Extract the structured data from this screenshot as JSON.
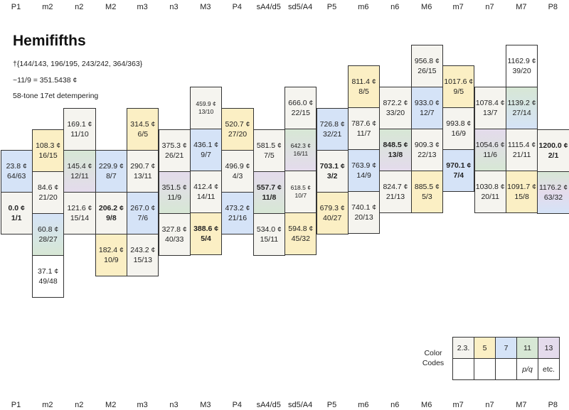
{
  "headers": [
    "P1",
    "m2",
    "n2",
    "M2",
    "m3",
    "n3",
    "M3",
    "P4",
    "sA4/d5",
    "sd5/A4",
    "P5",
    "m6",
    "n6",
    "M6",
    "m7",
    "n7",
    "M7",
    "P8"
  ],
  "title": "Hemififths",
  "info": [
    "†{144/143, 196/195, 243/242, 364/363}",
    "~11/9 = 351.5438 ¢",
    "58-tone 17et detempering"
  ],
  "colors": {
    "gray": "#f5f4ef",
    "yellow": "#fbefc4",
    "blue": "#d5e3f7",
    "green": "#d7e7d5",
    "purple": "#e4dbec",
    "white": "#ffffff"
  },
  "columns": [
    [
      {
        "cents": "23.8 ¢",
        "ratio": "64/63",
        "color": "blue"
      },
      {
        "cents": "0.0 ¢",
        "ratio": "1/1",
        "color": "gray",
        "bold": true
      }
    ],
    [
      {
        "cents": "108.3 ¢",
        "ratio": "16/15",
        "color": "yellow"
      },
      {
        "cents": "84.6 ¢",
        "ratio": "21/20",
        "color": "gray"
      },
      {
        "cents": "60.8 ¢",
        "ratio": "28/27",
        "color": "blue-green"
      },
      {
        "cents": "37.1 ¢",
        "ratio": "49/48",
        "color": "white"
      }
    ],
    [
      {
        "cents": "169.1 ¢",
        "ratio": "11/10",
        "color": "gray"
      },
      {
        "cents": "145.4 ¢",
        "ratio": "12/11",
        "color": "green-purple"
      },
      {
        "cents": "121.6 ¢",
        "ratio": "15/14",
        "color": "gray"
      }
    ],
    [
      {
        "cents": "229.9 ¢",
        "ratio": "8/7",
        "color": "blue"
      },
      {
        "cents": "206.2 ¢",
        "ratio": "9/8",
        "color": "gray",
        "bold": true
      },
      {
        "cents": "182.4 ¢",
        "ratio": "10/9",
        "color": "yellow"
      }
    ],
    [
      {
        "cents": "314.5 ¢",
        "ratio": "6/5",
        "color": "yellow"
      },
      {
        "cents": "290.7 ¢",
        "ratio": "13/11",
        "color": "gray"
      },
      {
        "cents": "267.0 ¢",
        "ratio": "7/6",
        "color": "blue"
      },
      {
        "cents": "243.2 ¢",
        "ratio": "15/13",
        "color": "gray"
      }
    ],
    [
      {
        "cents": "375.3 ¢",
        "ratio": "26/21",
        "color": "gray"
      },
      {
        "cents": "351.5 ¢",
        "ratio": "11/9",
        "color": "purple-green"
      },
      {
        "cents": "327.8 ¢",
        "ratio": "40/33",
        "color": "gray"
      }
    ],
    [
      {
        "cents": "459.9 ¢",
        "ratio": "13/10",
        "color": "gray",
        "small": true
      },
      {
        "cents": "436.1 ¢",
        "ratio": "9/7",
        "color": "blue"
      },
      {
        "cents": "412.4 ¢",
        "ratio": "14/11",
        "color": "gray"
      },
      {
        "cents": "388.6 ¢",
        "ratio": "5/4",
        "color": "yellow",
        "bold": true
      }
    ],
    [
      {
        "cents": "520.7 ¢",
        "ratio": "27/20",
        "color": "yellow"
      },
      {
        "cents": "496.9 ¢",
        "ratio": "4/3",
        "color": "gray"
      },
      {
        "cents": "473.2 ¢",
        "ratio": "21/16",
        "color": "blue"
      }
    ],
    [
      {
        "cents": "581.5 ¢",
        "ratio": "7/5",
        "color": "gray"
      },
      {
        "cents": "557.7 ¢",
        "ratio": "11/8",
        "color": "purple-green",
        "bold": true
      },
      {
        "cents": "534.0 ¢",
        "ratio": "15/11",
        "color": "gray"
      }
    ],
    [
      {
        "cents": "666.0 ¢",
        "ratio": "22/15",
        "color": "gray"
      },
      {
        "cents": "642.3 ¢",
        "ratio": "16/11",
        "color": "green-purple",
        "small": true
      },
      {
        "cents": "618.5 ¢",
        "ratio": "10/7",
        "color": "gray",
        "small": true
      },
      {
        "cents": "594.8 ¢",
        "ratio": "45/32",
        "color": "yellow"
      }
    ],
    [
      {
        "cents": "726.8 ¢",
        "ratio": "32/21",
        "color": "blue"
      },
      {
        "cents": "703.1 ¢",
        "ratio": "3/2",
        "color": "gray",
        "bold": true
      },
      {
        "cents": "679.3 ¢",
        "ratio": "40/27",
        "color": "yellow"
      }
    ],
    [
      {
        "cents": "811.4 ¢",
        "ratio": "8/5",
        "color": "yellow"
      },
      {
        "cents": "787.6 ¢",
        "ratio": "11/7",
        "color": "gray"
      },
      {
        "cents": "763.9 ¢",
        "ratio": "14/9",
        "color": "blue"
      },
      {
        "cents": "740.1 ¢",
        "ratio": "20/13",
        "color": "gray"
      }
    ],
    [
      {
        "cents": "872.2 ¢",
        "ratio": "33/20",
        "color": "gray"
      },
      {
        "cents": "848.5 ¢",
        "ratio": "13/8",
        "color": "green-purple",
        "bold": true
      },
      {
        "cents": "824.7 ¢",
        "ratio": "21/13",
        "color": "gray"
      }
    ],
    [
      {
        "cents": "956.8 ¢",
        "ratio": "26/15",
        "color": "gray"
      },
      {
        "cents": "933.0 ¢",
        "ratio": "12/7",
        "color": "blue"
      },
      {
        "cents": "909.3 ¢",
        "ratio": "22/13",
        "color": "gray"
      },
      {
        "cents": "885.5 ¢",
        "ratio": "5/3",
        "color": "yellow"
      }
    ],
    [
      {
        "cents": "1017.6 ¢",
        "ratio": "9/5",
        "color": "yellow"
      },
      {
        "cents": "993.8 ¢",
        "ratio": "16/9",
        "color": "gray"
      },
      {
        "cents": "970.1 ¢",
        "ratio": "7/4",
        "color": "blue",
        "bold": true
      }
    ],
    [
      {
        "cents": "1078.4 ¢",
        "ratio": "13/7",
        "color": "gray"
      },
      {
        "cents": "1054.6 ¢",
        "ratio": "11/6",
        "color": "purple-green"
      },
      {
        "cents": "1030.8 ¢",
        "ratio": "20/11",
        "color": "gray"
      }
    ],
    [
      {
        "cents": "1162.9 ¢",
        "ratio": "39/20",
        "color": "white"
      },
      {
        "cents": "1139.2 ¢",
        "ratio": "27/14",
        "color": "green-blue"
      },
      {
        "cents": "1115.4 ¢",
        "ratio": "21/11",
        "color": "gray"
      },
      {
        "cents": "1091.7 ¢",
        "ratio": "15/8",
        "color": "yellow"
      }
    ],
    [
      {
        "cents": "1200.0 ¢",
        "ratio": "2/1",
        "color": "gray",
        "bold": true
      },
      {
        "cents": "1176.2 ¢",
        "ratio": "63/32",
        "color": "green-purple-blue"
      }
    ]
  ],
  "legend": {
    "label": [
      "Color",
      "Codes"
    ],
    "top": [
      {
        "text": "2.3.",
        "color": "gray"
      },
      {
        "text": "5",
        "color": "yellow"
      },
      {
        "text": "7",
        "color": "blue"
      },
      {
        "text": "11",
        "color": "green"
      },
      {
        "text": "13",
        "color": "purple"
      }
    ],
    "bottom": [
      "",
      "",
      "",
      "p/q",
      "etc."
    ]
  }
}
